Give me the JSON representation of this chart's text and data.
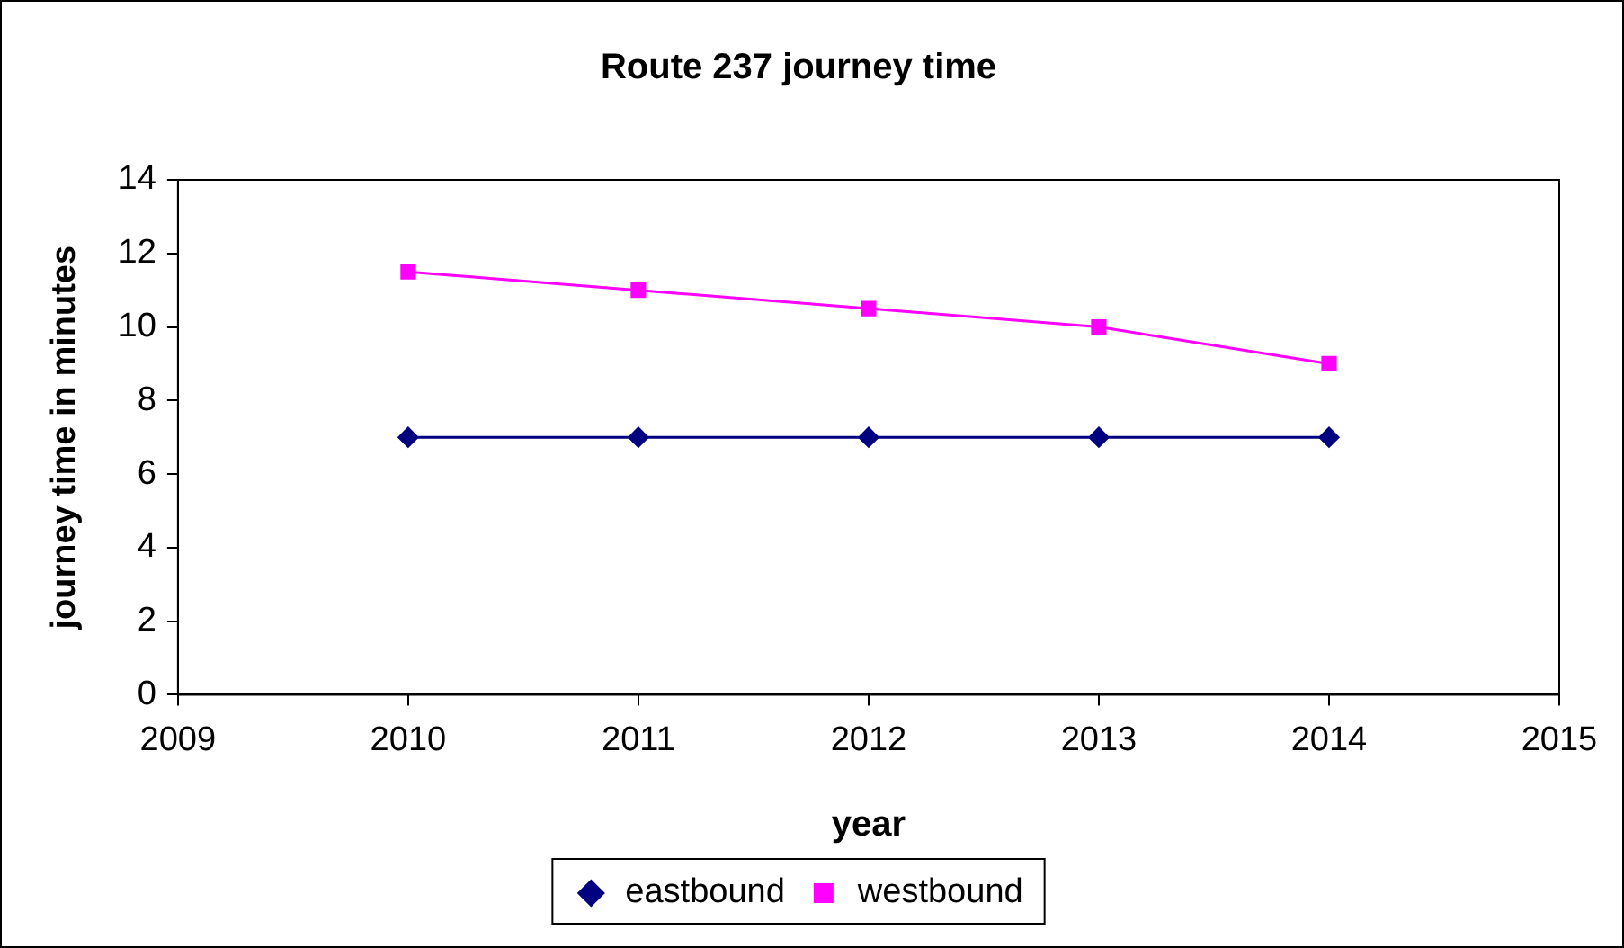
{
  "chart_data": {
    "type": "line",
    "title": "Route 237 journey time",
    "xlabel": "year",
    "ylabel": "journey time in minutes",
    "x": [
      2010,
      2011,
      2012,
      2013,
      2014
    ],
    "series": [
      {
        "name": "eastbound",
        "color": "#000080",
        "marker": "diamond",
        "values": [
          7,
          7,
          7,
          7,
          7
        ]
      },
      {
        "name": "westbound",
        "color": "#ff00ff",
        "marker": "square",
        "values": [
          11.5,
          11,
          10.5,
          10,
          9
        ]
      }
    ],
    "xlim": [
      2009,
      2015
    ],
    "xticks": [
      2009,
      2010,
      2011,
      2012,
      2013,
      2014,
      2015
    ],
    "ylim": [
      0,
      14
    ],
    "yticks": [
      0,
      2,
      4,
      6,
      8,
      10,
      12,
      14
    ],
    "grid": false,
    "legend": "bottom",
    "line_style": "solid"
  }
}
